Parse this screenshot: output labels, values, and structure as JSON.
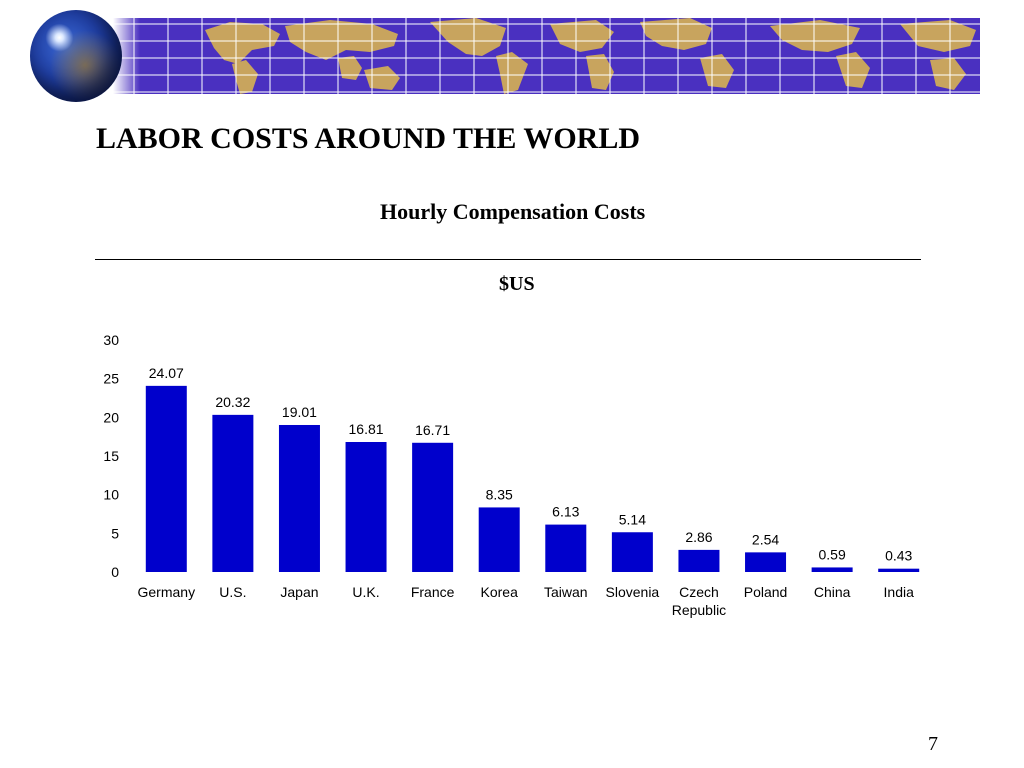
{
  "slide": {
    "title": "LABOR COSTS AROUND THE WORLD",
    "chart_heading": "Hourly Compensation Costs",
    "rule": "________________________________________________________________",
    "unit": "$US",
    "page_number": "7"
  },
  "banner": {
    "background_color": "#4a30c0",
    "land_color": "#c8a45e",
    "grid_color": "#ffffff",
    "icons": [
      "globe-icon",
      "world-map"
    ]
  },
  "chart_data": {
    "type": "bar",
    "title": "Hourly Compensation Costs",
    "subtitle": "$US",
    "xlabel": "",
    "ylabel": "",
    "categories": [
      "Germany",
      "U.S.",
      "Japan",
      "U.K.",
      "France",
      "Korea",
      "Taiwan",
      "Slovenia",
      "Czech Republic",
      "Poland",
      "China",
      "India"
    ],
    "category_lines": [
      [
        "Germany"
      ],
      [
        "U.S."
      ],
      [
        "Japan"
      ],
      [
        "U.K."
      ],
      [
        "France"
      ],
      [
        "Korea"
      ],
      [
        "Taiwan"
      ],
      [
        "Slovenia"
      ],
      [
        "Czech",
        "Republic"
      ],
      [
        "Poland"
      ],
      [
        "China"
      ],
      [
        "India"
      ]
    ],
    "values": [
      24.07,
      20.32,
      19.01,
      16.81,
      16.71,
      8.35,
      6.13,
      5.14,
      2.86,
      2.54,
      0.59,
      0.43
    ],
    "value_labels": [
      "24.07",
      "20.32",
      "19.01",
      "16.81",
      "16.71",
      "8.35",
      "6.13",
      "5.14",
      "2.86",
      "2.54",
      "0.59",
      "0.43"
    ],
    "yticks": [
      0,
      5,
      10,
      15,
      20,
      25,
      30
    ],
    "ylim": [
      0,
      30
    ],
    "grid": false,
    "legend": "none",
    "bar_color": "#0000cc"
  }
}
